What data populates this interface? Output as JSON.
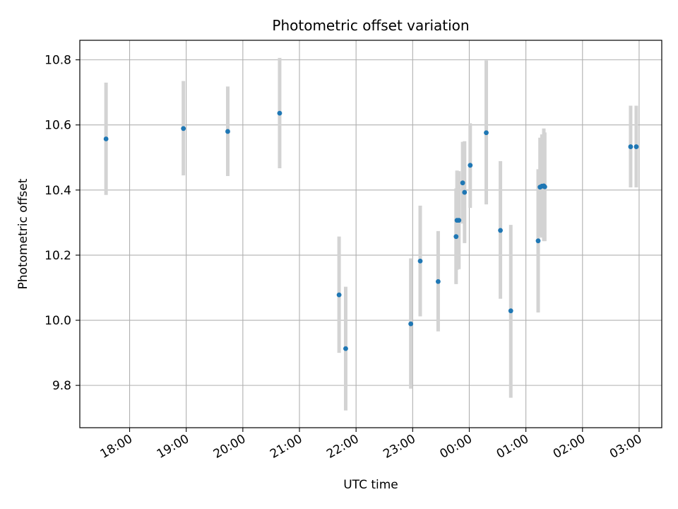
{
  "chart_data": {
    "type": "scatter",
    "title": "Photometric offset variation",
    "xlabel": "UTC time",
    "ylabel": "Photometric offset",
    "ylim": [
      9.67,
      10.86
    ],
    "xlim_hours": [
      17.12,
      27.4
    ],
    "grid": true,
    "point_color": "#1f77b4",
    "errorbar_color": "#d3d3d3",
    "x_ticks": [
      {
        "hour": 18,
        "label": "18:00"
      },
      {
        "hour": 19,
        "label": "19:00"
      },
      {
        "hour": 20,
        "label": "20:00"
      },
      {
        "hour": 21,
        "label": "21:00"
      },
      {
        "hour": 22,
        "label": "22:00"
      },
      {
        "hour": 23,
        "label": "23:00"
      },
      {
        "hour": 24,
        "label": "00:00"
      },
      {
        "hour": 25,
        "label": "01:00"
      },
      {
        "hour": 26,
        "label": "02:00"
      },
      {
        "hour": 27,
        "label": "03:00"
      }
    ],
    "y_ticks": [
      {
        "value": 9.8,
        "label": "9.8"
      },
      {
        "value": 10.0,
        "label": "10.0"
      },
      {
        "value": 10.2,
        "label": "10.2"
      },
      {
        "value": 10.4,
        "label": "10.4"
      },
      {
        "value": 10.6,
        "label": "10.6"
      },
      {
        "value": 10.8,
        "label": "10.8"
      }
    ],
    "points": [
      {
        "t": "17:35",
        "y": 10.557,
        "lo": 10.385,
        "hi": 10.73
      },
      {
        "t": "18:57",
        "y": 10.589,
        "lo": 10.445,
        "hi": 10.735
      },
      {
        "t": "19:44",
        "y": 10.58,
        "lo": 10.443,
        "hi": 10.718
      },
      {
        "t": "20:39",
        "y": 10.636,
        "lo": 10.467,
        "hi": 10.806
      },
      {
        "t": "21:42",
        "y": 10.078,
        "lo": 9.9,
        "hi": 10.257
      },
      {
        "t": "21:49",
        "y": 9.913,
        "lo": 9.723,
        "hi": 10.103
      },
      {
        "t": "22:58",
        "y": 9.989,
        "lo": 9.79,
        "hi": 10.19
      },
      {
        "t": "23:08",
        "y": 10.182,
        "lo": 10.012,
        "hi": 10.352
      },
      {
        "t": "23:27",
        "y": 10.119,
        "lo": 9.966,
        "hi": 10.274
      },
      {
        "t": "23:46",
        "y": 10.257,
        "lo": 10.111,
        "hi": 10.405
      },
      {
        "t": "23:47",
        "y": 10.307,
        "lo": 10.155,
        "hi": 10.46
      },
      {
        "t": "23:49",
        "y": 10.307,
        "lo": 10.157,
        "hi": 10.458
      },
      {
        "t": "23:53",
        "y": 10.422,
        "lo": 10.297,
        "hi": 10.548
      },
      {
        "t": "23:55",
        "y": 10.393,
        "lo": 10.237,
        "hi": 10.55
      },
      {
        "t": "00:01",
        "y": 10.476,
        "lo": 10.345,
        "hi": 10.605
      },
      {
        "t": "00:18",
        "y": 10.576,
        "lo": 10.356,
        "hi": 10.798
      },
      {
        "t": "00:33",
        "y": 10.276,
        "lo": 10.066,
        "hi": 10.489
      },
      {
        "t": "00:44",
        "y": 10.029,
        "lo": 9.762,
        "hi": 10.293
      },
      {
        "t": "01:13",
        "y": 10.244,
        "lo": 10.024,
        "hi": 10.464
      },
      {
        "t": "01:15",
        "y": 10.409,
        "lo": 10.258,
        "hi": 10.561
      },
      {
        "t": "01:17",
        "y": 10.412,
        "lo": 10.254,
        "hi": 10.571
      },
      {
        "t": "01:19",
        "y": 10.413,
        "lo": 10.243,
        "hi": 10.589
      },
      {
        "t": "01:20",
        "y": 10.41,
        "lo": 10.243,
        "hi": 10.577
      },
      {
        "t": "02:51",
        "y": 10.533,
        "lo": 10.408,
        "hi": 10.659
      },
      {
        "t": "02:57",
        "y": 10.533,
        "lo": 10.408,
        "hi": 10.659
      }
    ]
  }
}
